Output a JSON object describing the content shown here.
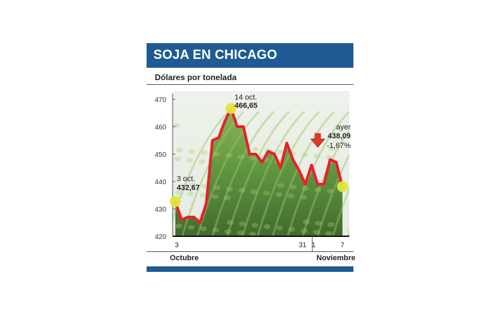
{
  "header": {
    "title": "SOJA EN CHICAGO",
    "subtitle": "Dólares por tonelada"
  },
  "months": {
    "oct": "Octubre",
    "nov": "Noviembre"
  },
  "colors": {
    "brand": "#1f5b92",
    "line": "#e8202a",
    "highlight": "#e3e53a",
    "arrow": "#e0392b"
  },
  "icons": {
    "change": "arrow-down-icon"
  },
  "chart_data": {
    "type": "line",
    "ylim": [
      420,
      470
    ],
    "yticks": [
      420,
      430,
      440,
      450,
      460,
      470
    ],
    "xticks": [
      "3",
      "31",
      "1",
      "7"
    ],
    "grid": false,
    "values": [
      432.67,
      426,
      427,
      427,
      425,
      432,
      455,
      456,
      462,
      466.65,
      460,
      460,
      450,
      450,
      447,
      451,
      450,
      445,
      454,
      448,
      444,
      439,
      446,
      439,
      439,
      448,
      447,
      438.09
    ],
    "annotations": [
      {
        "label": "3 oct.",
        "value": "432,67"
      },
      {
        "label": "14 oct.",
        "value": "466,65"
      },
      {
        "label": "ayer",
        "value": "438,09",
        "change": "-1,67%"
      }
    ]
  }
}
